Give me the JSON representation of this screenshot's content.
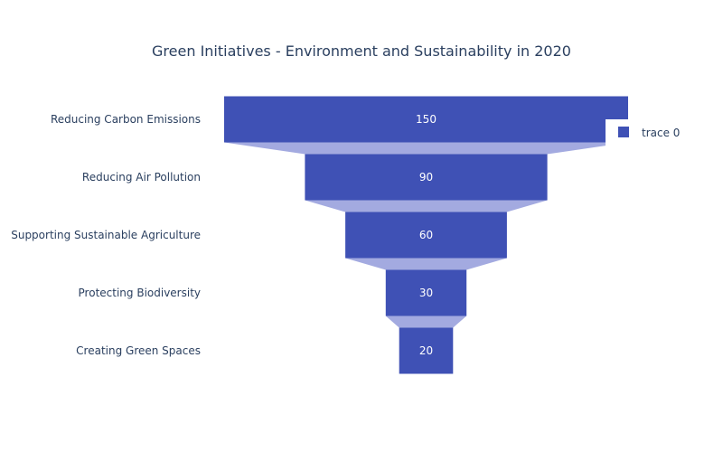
{
  "chart_data": {
    "type": "funnel",
    "title": "Green Initiatives - Environment and Sustainability in 2020",
    "categories": [
      "Reducing Carbon Emissions",
      "Reducing Air Pollution",
      "Supporting Sustainable Agriculture",
      "Protecting Biodiversity",
      "Creating Green Spaces"
    ],
    "values": [
      150,
      90,
      60,
      30,
      20
    ],
    "series": [
      {
        "name": "trace 0",
        "values": [
          150,
          90,
          60,
          30,
          20
        ]
      }
    ],
    "legend": {
      "position": "right",
      "entries": [
        "trace 0"
      ]
    },
    "xlabel": "",
    "ylabel": "",
    "grid": false
  },
  "colors": {
    "bar": "#3f51b5",
    "connector": "#a3aae0",
    "text": "#2a3f5f",
    "value_text": "#ffffff",
    "background": "#ffffff"
  }
}
